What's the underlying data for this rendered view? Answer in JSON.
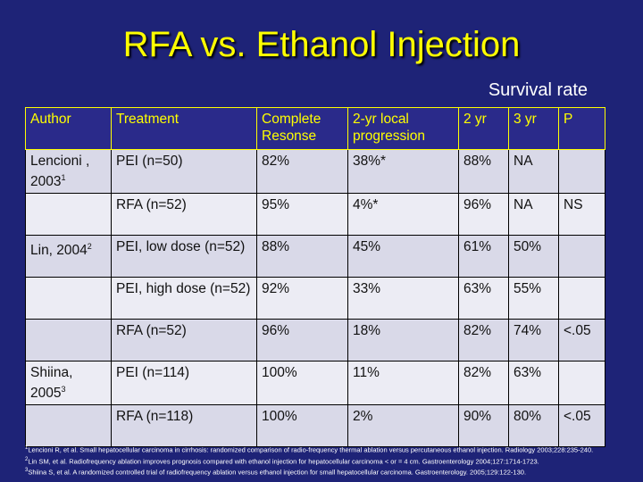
{
  "slide": {
    "title": "RFA vs. Ethanol Injection",
    "subtitle": "Survival rate"
  },
  "table": {
    "headers": [
      "Author",
      "Treatment",
      "Complete Resonse",
      "2-yr local progression",
      "2 yr",
      "3 yr",
      "P"
    ],
    "rows": [
      {
        "author": "Lencioni , 2003",
        "sup": "1",
        "treatment": "PEI (n=50)",
        "complete": "82%",
        "progression": "38%*",
        "yr2": "88%",
        "yr3": "NA",
        "p": ""
      },
      {
        "author": "",
        "sup": "",
        "treatment": "RFA (n=52)",
        "complete": "95%",
        "progression": "4%*",
        "yr2": "96%",
        "yr3": "NA",
        "p": "NS"
      },
      {
        "author": "Lin, 2004",
        "sup": "2",
        "treatment": "PEI, low dose (n=52)",
        "complete": "88%",
        "progression": "45%",
        "yr2": "61%",
        "yr3": "50%",
        "p": ""
      },
      {
        "author": "",
        "sup": "",
        "treatment": "PEI, high dose (n=52)",
        "complete": "92%",
        "progression": "33%",
        "yr2": "63%",
        "yr3": "55%",
        "p": ""
      },
      {
        "author": "",
        "sup": "",
        "treatment": "RFA (n=52)",
        "complete": "96%",
        "progression": "18%",
        "yr2": "82%",
        "yr3": "74%",
        "p": "<.05"
      },
      {
        "author": "Shiina, 2005",
        "sup": "3",
        "treatment": "PEI (n=114)",
        "complete": "100%",
        "progression": "11%",
        "yr2": "82%",
        "yr3": "63%",
        "p": ""
      },
      {
        "author": "",
        "sup": "",
        "treatment": "RFA (n=118)",
        "complete": "100%",
        "progression": "2%",
        "yr2": "90%",
        "yr3": "80%",
        "p": "<.05"
      }
    ]
  },
  "footnotes": [
    {
      "num": "1",
      "text": "Lencioni R, et al. Small hepatocellular carcinoma in cirrhosis: randomized comparison of radio-frequency thermal ablation versus percutaneous ethanol injection. Radiology 2003;228:235-240."
    },
    {
      "num": "2",
      "text": "Lin SM, et al. Radiofrequency ablation improves prognosis compared with ethanol injection for hepatocellular carcinoma < or = 4 cm. Gastroenterology 2004;127:1714-1723."
    },
    {
      "num": "3",
      "text": "Shiina S, et al. A randomized controlled trial of radiofrequency ablation versus ethanol injection for small hepatocellular carcinoma. Gastroenterology. 2005;129:122-130."
    }
  ]
}
